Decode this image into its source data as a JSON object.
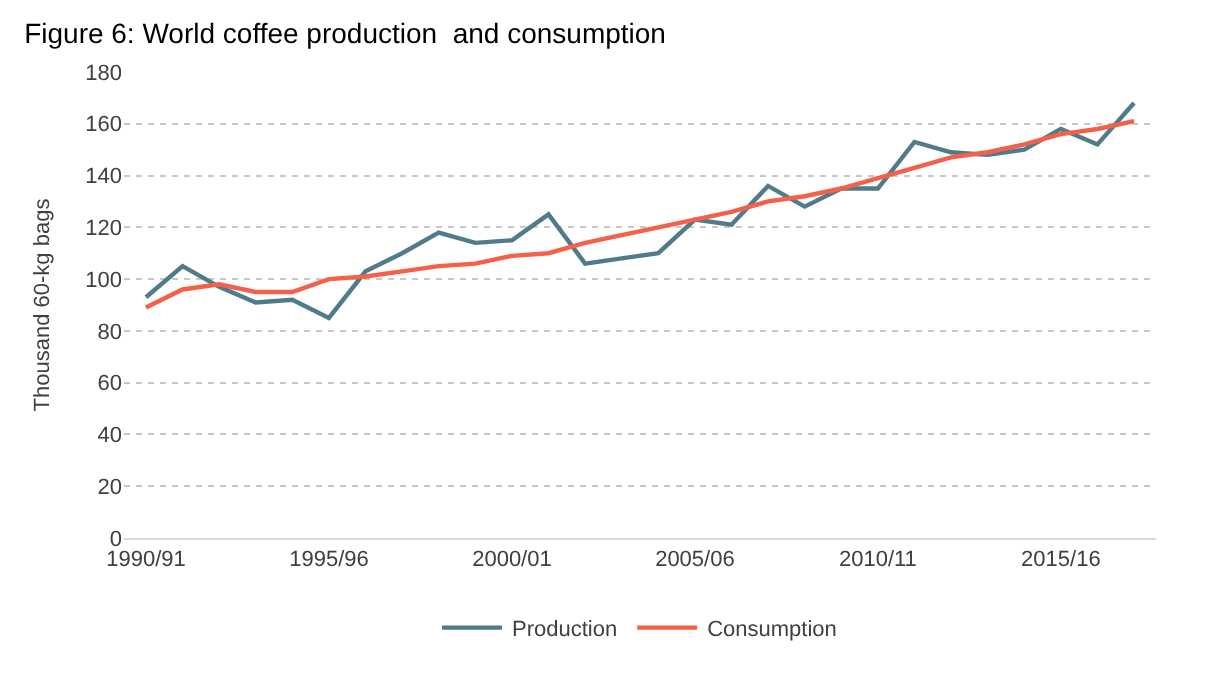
{
  "chart_data": {
    "type": "line",
    "title": "Figure 6: World coffee production  and consumption",
    "ylabel": "Thousand 60-kg bags",
    "categories": [
      "1990/91",
      null,
      null,
      null,
      null,
      "1995/96",
      null,
      null,
      null,
      null,
      "2000/01",
      null,
      null,
      null,
      null,
      "2005/06",
      null,
      null,
      null,
      null,
      "2010/11",
      null,
      null,
      null,
      null,
      "2015/16",
      null,
      null
    ],
    "series": [
      {
        "name": "Production",
        "color": "#4f7b8a",
        "values": [
          93,
          105,
          97,
          91,
          92,
          85,
          103,
          110,
          118,
          114,
          115,
          125,
          106,
          108,
          110,
          123,
          121,
          136,
          128,
          135,
          135,
          153,
          149,
          148,
          150,
          158,
          152,
          168
        ]
      },
      {
        "name": "Consumption",
        "color": "#f4604a",
        "values": [
          89,
          96,
          98,
          95,
          95,
          100,
          101,
          103,
          105,
          106,
          109,
          110,
          114,
          117,
          120,
          123,
          126,
          130,
          132,
          135,
          139,
          143,
          147,
          149,
          152,
          156,
          158,
          161
        ]
      }
    ],
    "ylim": [
      0,
      180
    ],
    "yticks": [
      0,
      20,
      40,
      60,
      80,
      100,
      120,
      140,
      160,
      180
    ],
    "grid": "y",
    "legend": "bottom",
    "line_style": "solid",
    "marker": "none"
  }
}
